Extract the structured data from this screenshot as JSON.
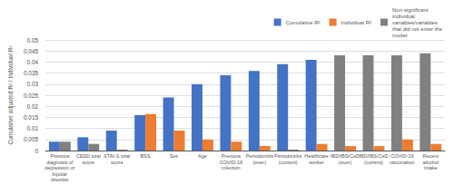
{
  "chart_data": {
    "type": "bar",
    "ylabel": "Cumulative adjusted R² / Individual R²",
    "categories": [
      "Previous\ndiagnosis of\ndepression or\nbipolar\ndisorder",
      "CESD total\nscore",
      "STAI-S total\nscore",
      "BSS",
      "Sex",
      "Age",
      "Previous\nCOVID-19\ninfection",
      "Periodontitis\n(ever)",
      "Periodontitis\n(current)",
      "Healthcare\nworker",
      "IBD/IBS/CeD\n(ever)",
      "IBD/IBS/CeD\n(current)",
      "COVID-19\nvaccination",
      "Recent\nalcohol\nintake"
    ],
    "series": [
      {
        "name": "Cumulative R²",
        "color": "#4472C4",
        "values": [
          0.004,
          0.006,
          0.009,
          0.016,
          0.024,
          0.03,
          0.034,
          0.036,
          0.039,
          0.041,
          0.043,
          0.043,
          0.043,
          0.044
        ],
        "colors": [
          "#4472C4",
          "#4472C4",
          "#4472C4",
          "#4472C4",
          "#4472C4",
          "#4472C4",
          "#4472C4",
          "#4472C4",
          "#4472C4",
          "#4472C4",
          "#808080",
          "#808080",
          "#808080",
          "#808080"
        ]
      },
      {
        "name": "Individual R²",
        "color": "#ED7D31",
        "values": [
          0.004,
          0.003,
          0.0004,
          0.0165,
          0.009,
          0.005,
          0.004,
          0.002,
          0.0004,
          0.003,
          0.002,
          0.002,
          0.005,
          0.003
        ],
        "colors": [
          "#808080",
          "#808080",
          "#808080",
          "#ED7D31",
          "#ED7D31",
          "#ED7D31",
          "#ED7D31",
          "#ED7D31",
          "#808080",
          "#ED7D31",
          "#ED7D31",
          "#ED7D31",
          "#ED7D31",
          "#ED7D31"
        ]
      },
      {
        "name": "Non-significant\nindividual\nvariables/variables\nthat did not enter the\nmodel",
        "color": "#808080",
        "values": [
          null,
          null,
          null,
          null,
          null,
          null,
          null,
          null,
          null,
          null,
          null,
          null,
          null,
          null
        ]
      }
    ],
    "ylim": [
      0,
      0.05
    ],
    "yticks": [
      0,
      0.005,
      0.01,
      0.015,
      0.02,
      0.025,
      0.03,
      0.035,
      0.04,
      0.045,
      0.05
    ],
    "grid": true,
    "legend": "upper right"
  }
}
